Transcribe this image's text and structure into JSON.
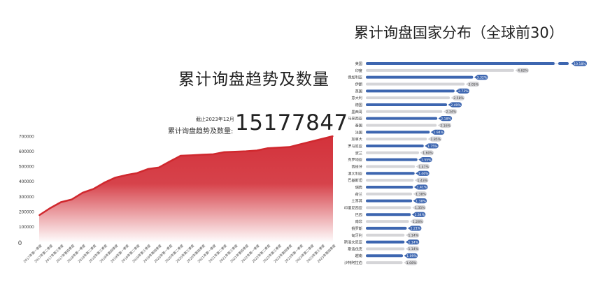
{
  "chart_data": [
    {
      "type": "area",
      "title": "累计询盘趋势及数量",
      "as_of": "截止2023年12月",
      "total_label": "累计询盘趋势及数量:",
      "total_value": "15177847",
      "ylim": [
        0,
        700000
      ],
      "y_ticks": [
        "0",
        "100000",
        "200000",
        "300000",
        "400000",
        "500000",
        "600000",
        "700000"
      ],
      "grid": false,
      "colors": {
        "line": "#d0282e",
        "fill": "#d3323b"
      },
      "categories": [
        "2017年第一季度",
        "2017年第二季度",
        "2017年第三季度",
        "2017年第四季度",
        "2018年第一季度",
        "2018年第二季度",
        "2018年第三季度",
        "2018年第四季度",
        "2019年第一季度",
        "2019年第二季度",
        "2019年第三季度",
        "2019年第四季度",
        "2020年第一季度",
        "2020年第二季度",
        "2020年第三季度",
        "2020年第四季度",
        "2021年第一季度",
        "2021年第二季度",
        "2021年第三季度",
        "2021年第四季度",
        "2022年第一季度",
        "2022年第二季度",
        "2022年第三季度",
        "2022年第四季度",
        "2023年第一季度",
        "2023年第二季度",
        "2023年第三季度",
        "2023年第四季度"
      ],
      "values": [
        175000,
        222000,
        262000,
        280000,
        325000,
        350000,
        392000,
        425000,
        442000,
        455000,
        482000,
        492000,
        532000,
        570000,
        573000,
        577000,
        580000,
        594000,
        597000,
        600000,
        605000,
        620000,
        624000,
        628000,
        646000,
        664000,
        682000,
        700000
      ]
    },
    {
      "type": "bar",
      "orientation": "horizontal",
      "title": "累计询盘国家分布（全球前30）",
      "unit": "%",
      "colors": {
        "highlight": "#3d66b0",
        "muted": "#d5d5d8"
      },
      "axis_break_on_first": true,
      "categories": [
        "美国",
        "印度",
        "保加利亚",
        "伊朗",
        "英国",
        "意大利",
        "德国",
        "墨西哥",
        "马来西亚",
        "泰国",
        "法国",
        "加拿大",
        "罗马尼亚",
        "波兰",
        "克罗地亚",
        "西班牙",
        "澳大利亚",
        "巴基斯坦",
        "瑞典",
        "荷兰",
        "土耳其",
        "印度尼西亚",
        "巴西",
        "南非",
        "俄罗斯",
        "匈牙利",
        "斯洛文尼亚",
        "斯洛伐克",
        "越南",
        "沙特阿拉伯"
      ],
      "values": [
        10.18,
        4.62,
        3.32,
        3.05,
        2.73,
        2.58,
        2.49,
        2.34,
        2.18,
        2.16,
        1.94,
        1.85,
        1.75,
        1.6,
        1.55,
        1.47,
        1.46,
        1.43,
        1.41,
        1.38,
        1.38,
        1.35,
        1.34,
        1.28,
        1.21,
        1.14,
        1.14,
        1.14,
        1.09,
        1.08
      ],
      "labels": [
        "10.18%",
        "4.62%",
        "3.32%",
        "3.05%",
        "2.73%",
        "2.58%",
        "2.49%",
        "2.34%",
        "2.18%",
        "2.16%",
        "1.94%",
        "1.85%",
        "1.75%",
        "1.60%",
        "1.55%",
        "1.47%",
        "1.46%",
        "1.43%",
        "1.41%",
        "1.38%",
        "1.38%",
        "1.35%",
        "1.34%",
        "1.28%",
        "1.21%",
        "1.14%",
        "1.14%",
        "1.14%",
        "1.09%",
        "1.08%"
      ]
    }
  ]
}
